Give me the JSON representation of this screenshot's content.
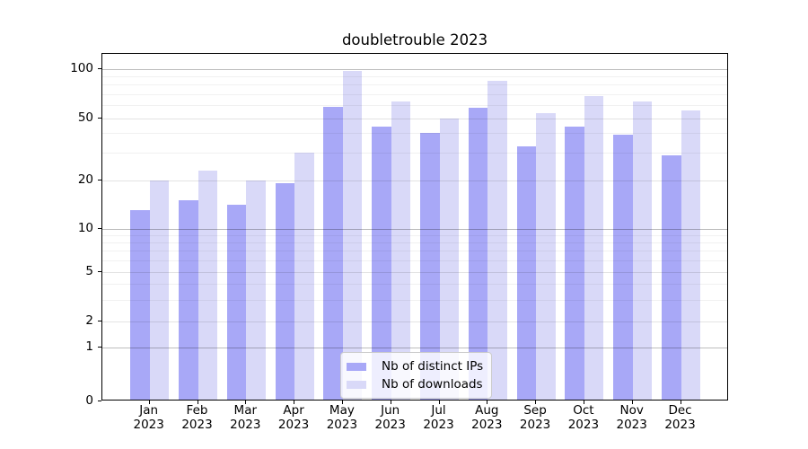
{
  "title": "doubletrouble 2023",
  "chart_data": {
    "type": "bar",
    "title": "doubletrouble 2023",
    "categories": [
      "Jan",
      "Feb",
      "Mar",
      "Apr",
      "May",
      "Jun",
      "Jul",
      "Aug",
      "Sep",
      "Oct",
      "Nov",
      "Dec"
    ],
    "year_label": "2023",
    "series": [
      {
        "name": "Nb of distinct IPs",
        "color": "#a8a8f7",
        "values": [
          13,
          15,
          14,
          19,
          59,
          44,
          40,
          58,
          33,
          44,
          39,
          29
        ]
      },
      {
        "name": "Nb of downloads",
        "color": "#d9d9f8",
        "values": [
          20,
          23,
          20,
          30,
          97,
          63,
          50,
          85,
          54,
          68,
          63,
          56
        ]
      }
    ],
    "xlabel": "",
    "ylabel": "",
    "yscale": "asinh (log-like with 0)",
    "yticks": [
      0,
      1,
      2,
      5,
      10,
      20,
      50,
      100
    ],
    "yminorticks": [
      3,
      4,
      6,
      7,
      8,
      9,
      30,
      40,
      60,
      70,
      80,
      90
    ],
    "ylim": [
      0,
      122
    ],
    "grid": true,
    "legend_position": "lower center"
  }
}
